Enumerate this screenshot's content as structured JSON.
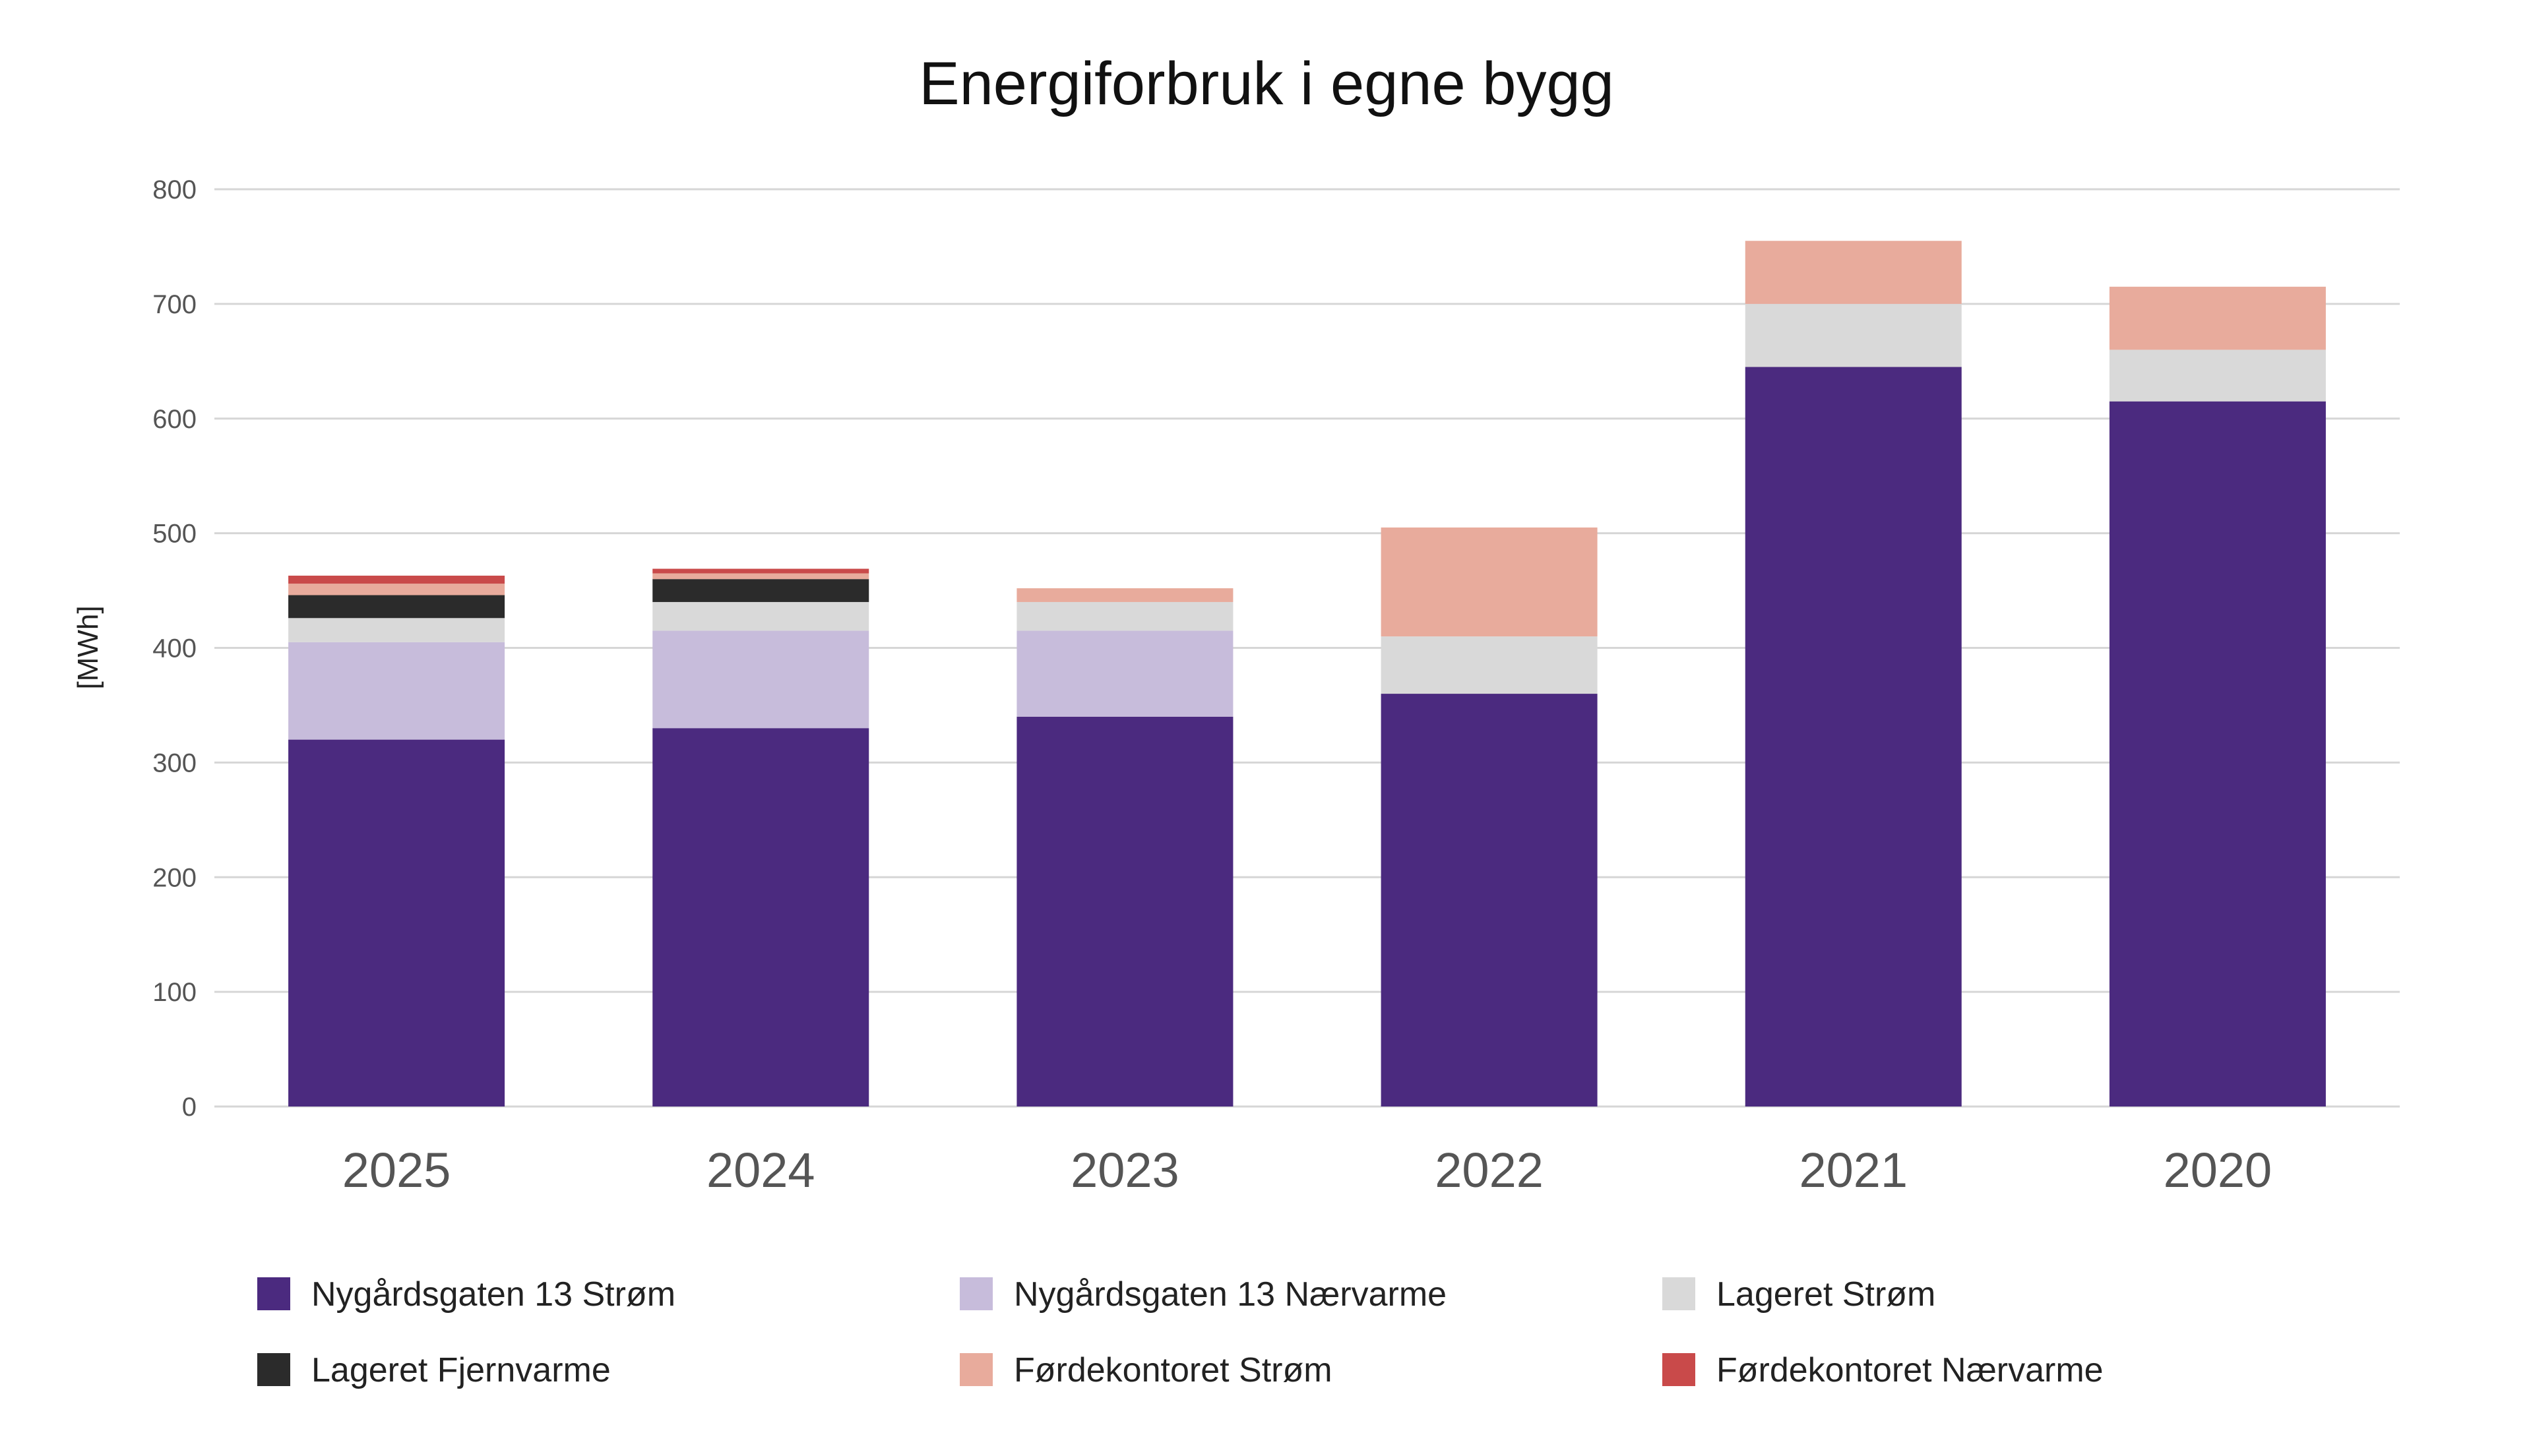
{
  "chart_data": {
    "type": "bar",
    "stacked": true,
    "title": "Energiforbruk i egne bygg",
    "xlabel": "",
    "ylabel": "[MWh]",
    "ylim": [
      0,
      800
    ],
    "yticks": [
      "0",
      "100",
      "200",
      "300",
      "400",
      "500",
      "600",
      "700",
      "800"
    ],
    "categories": [
      "2025",
      "2024",
      "2023",
      "2022",
      "2021",
      "2020"
    ],
    "grid": true,
    "legend_position": "bottom",
    "series": [
      {
        "name": "Nygårdsgaten 13 Strøm",
        "color": "#4b2a7f",
        "values": [
          320,
          330,
          340,
          360,
          645,
          615
        ]
      },
      {
        "name": "Nygårdsgaten 13 Nærvarme",
        "color": "#c7bcdb",
        "values": [
          85,
          85,
          75,
          0,
          0,
          0
        ]
      },
      {
        "name": "Lageret Strøm",
        "color": "#d9d9d9",
        "values": [
          21,
          25,
          25,
          50,
          55,
          45
        ]
      },
      {
        "name": "Lageret Fjernvarme",
        "color": "#2b2b2b",
        "values": [
          20,
          20,
          0,
          0,
          0,
          0
        ]
      },
      {
        "name": "Førdekontoret Strøm",
        "color": "#e8ab9c",
        "values": [
          10,
          5,
          12,
          95,
          55,
          55
        ]
      },
      {
        "name": "Førdekontoret Nærvarme",
        "color": "#c94a4a",
        "values": [
          7,
          4,
          0,
          0,
          0,
          0
        ]
      }
    ]
  }
}
